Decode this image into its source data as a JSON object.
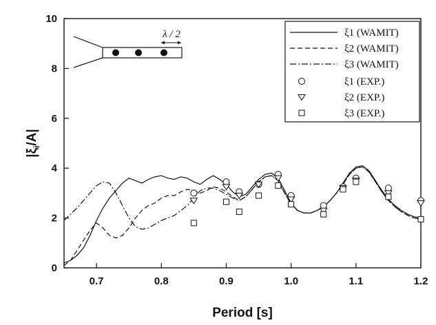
{
  "chart_data": {
    "type": "line",
    "title": "",
    "xlabel": "Period [s]",
    "ylabel_main": "|ξ",
    "ylabel_sub": "i",
    "ylabel_tail": "/A|",
    "xlim": [
      0.65,
      1.2
    ],
    "ylim": [
      0,
      10
    ],
    "x_ticks": [
      0.7,
      0.8,
      0.9,
      1.0,
      1.1,
      1.2
    ],
    "x_tick_labels": [
      "0.7",
      "0.8",
      "0.9",
      "1.0",
      "1.1",
      "1.2"
    ],
    "y_ticks": [
      0,
      2,
      4,
      6,
      8,
      10
    ],
    "y_tick_labels": [
      "0",
      "2",
      "4",
      "6",
      "8",
      "10"
    ],
    "grid": false,
    "legend_position": "top-right",
    "inset_label": "λ / 2",
    "series": [
      {
        "name": "ξ1 (WAMIT)",
        "kind": "line",
        "dash": "solid",
        "x": [
          0.65,
          0.66,
          0.67,
          0.68,
          0.69,
          0.7,
          0.71,
          0.72,
          0.73,
          0.74,
          0.75,
          0.76,
          0.77,
          0.78,
          0.79,
          0.8,
          0.81,
          0.82,
          0.83,
          0.84,
          0.85,
          0.86,
          0.87,
          0.88,
          0.89,
          0.9,
          0.91,
          0.92,
          0.93,
          0.94,
          0.95,
          0.96,
          0.97,
          0.98,
          0.99,
          1.0,
          1.01,
          1.02,
          1.03,
          1.04,
          1.05,
          1.06,
          1.07,
          1.08,
          1.09,
          1.1,
          1.11,
          1.12,
          1.13,
          1.14,
          1.15,
          1.16,
          1.17,
          1.18,
          1.19,
          1.2
        ],
        "y": [
          0.2,
          0.3,
          0.5,
          0.8,
          1.3,
          1.9,
          2.4,
          2.8,
          3.1,
          3.4,
          3.6,
          3.5,
          3.4,
          3.55,
          3.65,
          3.7,
          3.6,
          3.55,
          3.65,
          3.6,
          3.45,
          3.35,
          3.55,
          3.7,
          3.55,
          3.35,
          3.05,
          2.85,
          2.95,
          3.25,
          3.55,
          3.75,
          3.8,
          3.6,
          3.1,
          2.6,
          2.3,
          2.2,
          2.2,
          2.3,
          2.45,
          2.7,
          3.0,
          3.4,
          3.8,
          4.05,
          4.1,
          3.9,
          3.5,
          3.1,
          2.75,
          2.5,
          2.3,
          2.15,
          2.05,
          2.0
        ]
      },
      {
        "name": "ξ2 (WAMIT)",
        "kind": "line",
        "dash": "dashed",
        "x": [
          0.65,
          0.66,
          0.67,
          0.68,
          0.69,
          0.7,
          0.71,
          0.72,
          0.73,
          0.74,
          0.75,
          0.76,
          0.77,
          0.78,
          0.79,
          0.8,
          0.81,
          0.82,
          0.83,
          0.84,
          0.85,
          0.86,
          0.87,
          0.88,
          0.89,
          0.9,
          0.91,
          0.92,
          0.93,
          0.94,
          0.95,
          0.96,
          0.97,
          0.98,
          0.99,
          1.0,
          1.01,
          1.02,
          1.03,
          1.04,
          1.05,
          1.06,
          1.07,
          1.08,
          1.09,
          1.1,
          1.11,
          1.12,
          1.13,
          1.14,
          1.15,
          1.16,
          1.17,
          1.18,
          1.19,
          1.2
        ],
        "y": [
          0.1,
          0.3,
          0.7,
          1.1,
          1.5,
          1.8,
          1.6,
          1.3,
          1.2,
          1.3,
          1.6,
          2.0,
          2.3,
          2.5,
          2.6,
          2.8,
          2.9,
          2.9,
          3.05,
          3.15,
          3.1,
          3.0,
          3.1,
          3.25,
          3.2,
          3.05,
          2.85,
          2.7,
          2.85,
          3.15,
          3.45,
          3.65,
          3.7,
          3.5,
          3.0,
          2.55,
          2.3,
          2.2,
          2.2,
          2.3,
          2.45,
          2.7,
          3.0,
          3.35,
          3.75,
          4.0,
          4.05,
          3.85,
          3.45,
          3.05,
          2.7,
          2.45,
          2.25,
          2.1,
          2.0,
          1.95
        ]
      },
      {
        "name": "ξ3 (WAMIT)",
        "kind": "line",
        "dash": "dashdot",
        "x": [
          0.65,
          0.66,
          0.67,
          0.68,
          0.69,
          0.7,
          0.71,
          0.72,
          0.73,
          0.74,
          0.75,
          0.76,
          0.77,
          0.78,
          0.79,
          0.8,
          0.81,
          0.82,
          0.83,
          0.84,
          0.85,
          0.86,
          0.87,
          0.88,
          0.89,
          0.9,
          0.91,
          0.92,
          0.93,
          0.94,
          0.95,
          0.96,
          0.97,
          0.98,
          0.99,
          1.0,
          1.01,
          1.02,
          1.03,
          1.04,
          1.05,
          1.06,
          1.07,
          1.08,
          1.09,
          1.1,
          1.11,
          1.12,
          1.13,
          1.14,
          1.15,
          1.16,
          1.17,
          1.18,
          1.19,
          1.2
        ],
        "y": [
          1.9,
          2.15,
          2.4,
          2.7,
          3.0,
          3.3,
          3.45,
          3.4,
          3.0,
          2.5,
          2.0,
          1.65,
          1.55,
          1.6,
          1.75,
          1.9,
          2.0,
          2.1,
          2.3,
          2.5,
          2.8,
          3.1,
          3.2,
          3.2,
          3.1,
          2.95,
          2.8,
          2.7,
          2.85,
          3.15,
          3.45,
          3.65,
          3.7,
          3.5,
          3.0,
          2.55,
          2.3,
          2.2,
          2.2,
          2.3,
          2.45,
          2.7,
          3.0,
          3.35,
          3.75,
          4.0,
          4.05,
          3.85,
          3.45,
          3.05,
          2.7,
          2.45,
          2.25,
          2.1,
          2.0,
          1.95
        ]
      },
      {
        "name": "ξ1 (EXP.)",
        "kind": "marker",
        "marker": "circle",
        "x": [
          0.85,
          0.9,
          0.92,
          0.95,
          0.98,
          1.0,
          1.05,
          1.08,
          1.1,
          1.15,
          1.2
        ],
        "y": [
          3.0,
          3.45,
          3.05,
          3.35,
          3.75,
          2.9,
          2.5,
          3.25,
          3.6,
          3.2,
          2.7
        ]
      },
      {
        "name": "ξ2 (EXP.)",
        "kind": "marker",
        "marker": "triangle-down",
        "x": [
          0.85,
          0.9,
          0.92,
          0.95,
          0.98,
          1.0,
          1.05,
          1.08,
          1.1,
          1.15,
          1.2
        ],
        "y": [
          2.7,
          3.25,
          2.9,
          3.35,
          3.6,
          2.75,
          2.3,
          3.2,
          3.5,
          3.0,
          2.6
        ]
      },
      {
        "name": "ξ3 (EXP.)",
        "kind": "marker",
        "marker": "square",
        "x": [
          0.85,
          0.9,
          0.92,
          0.95,
          0.98,
          1.0,
          1.05,
          1.08,
          1.1,
          1.15,
          1.2
        ],
        "y": [
          1.8,
          2.65,
          2.25,
          2.9,
          3.3,
          2.55,
          2.15,
          3.15,
          3.45,
          2.85,
          1.95
        ]
      }
    ]
  }
}
